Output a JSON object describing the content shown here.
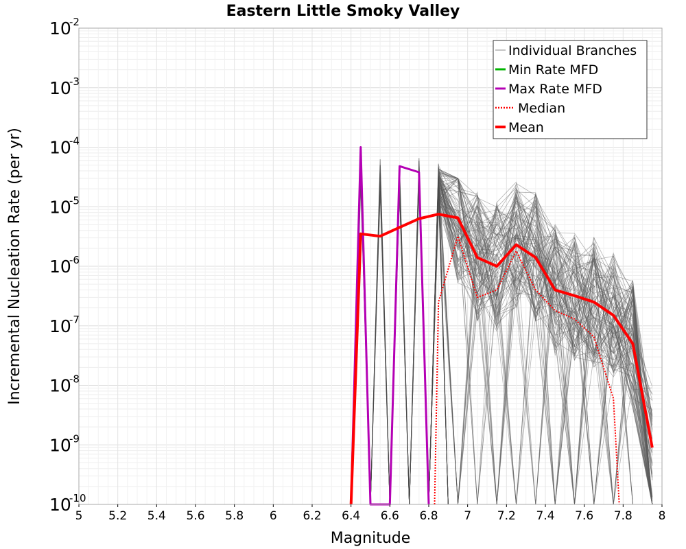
{
  "chart_data": {
    "type": "line",
    "title": "Eastern Little Smoky Valley",
    "xlabel": "Magnitude",
    "ylabel": "Incremental Nucleation Rate (per yr)",
    "xlim": [
      5,
      8
    ],
    "ylim": [
      1e-10,
      0.01
    ],
    "y_scale": "log",
    "grid": true,
    "legend_position": "top-right",
    "x_ticks": [
      "5",
      "5.2",
      "5.4",
      "5.6",
      "5.8",
      "6",
      "6.2",
      "6.4",
      "6.6",
      "6.8",
      "7",
      "7.2",
      "7.4",
      "7.6",
      "7.8",
      "8"
    ],
    "y_ticks": [
      {
        "base": "10",
        "exp": "-10"
      },
      {
        "base": "10",
        "exp": "-9"
      },
      {
        "base": "10",
        "exp": "-8"
      },
      {
        "base": "10",
        "exp": "-7"
      },
      {
        "base": "10",
        "exp": "-6"
      },
      {
        "base": "10",
        "exp": "-5"
      },
      {
        "base": "10",
        "exp": "-4"
      },
      {
        "base": "10",
        "exp": "-3"
      },
      {
        "base": "10",
        "exp": "-2"
      }
    ],
    "series": [
      {
        "name": "Mean",
        "color": "#ff0000",
        "style": "solid",
        "x": [
          6.4,
          6.45,
          6.55,
          6.65,
          6.75,
          6.85,
          6.95,
          7.05,
          7.15,
          7.25,
          7.35,
          7.45,
          7.55,
          7.65,
          7.75,
          7.85,
          7.95
        ],
        "y": [
          1e-10,
          3.5e-06,
          3.2e-06,
          4.5e-06,
          6.3e-06,
          7.5e-06,
          6.5e-06,
          1.4e-06,
          1e-06,
          2.3e-06,
          1.4e-06,
          4e-07,
          3.2e-07,
          2.5e-07,
          1.5e-07,
          5e-08,
          9e-10
        ]
      },
      {
        "name": "Median",
        "color": "#ff0000",
        "style": "dotted",
        "x": [
          6.83,
          6.85,
          6.95,
          7.05,
          7.15,
          7.25,
          7.35,
          7.45,
          7.55,
          7.65,
          7.75,
          7.78
        ],
        "y": [
          1e-10,
          2.5e-07,
          3.2e-06,
          3e-07,
          4e-07,
          1.8e-06,
          4e-07,
          1.8e-07,
          1.3e-07,
          6.5e-08,
          6e-09,
          1e-10
        ]
      },
      {
        "name": "Max Rate MFD",
        "color": "#b400b4",
        "style": "solid",
        "x": [
          6.4,
          6.45,
          6.5,
          6.6,
          6.65,
          6.75,
          6.8
        ],
        "y": [
          1e-10,
          0.0001,
          1e-10,
          1e-10,
          4.8e-05,
          3.8e-05,
          1e-10
        ]
      },
      {
        "name": "Min Rate MFD",
        "color": "#00b400",
        "style": "solid",
        "x": [],
        "y": []
      },
      {
        "name": "Individual Branches",
        "color": "#5a5a5a",
        "style": "thin"
      }
    ]
  }
}
